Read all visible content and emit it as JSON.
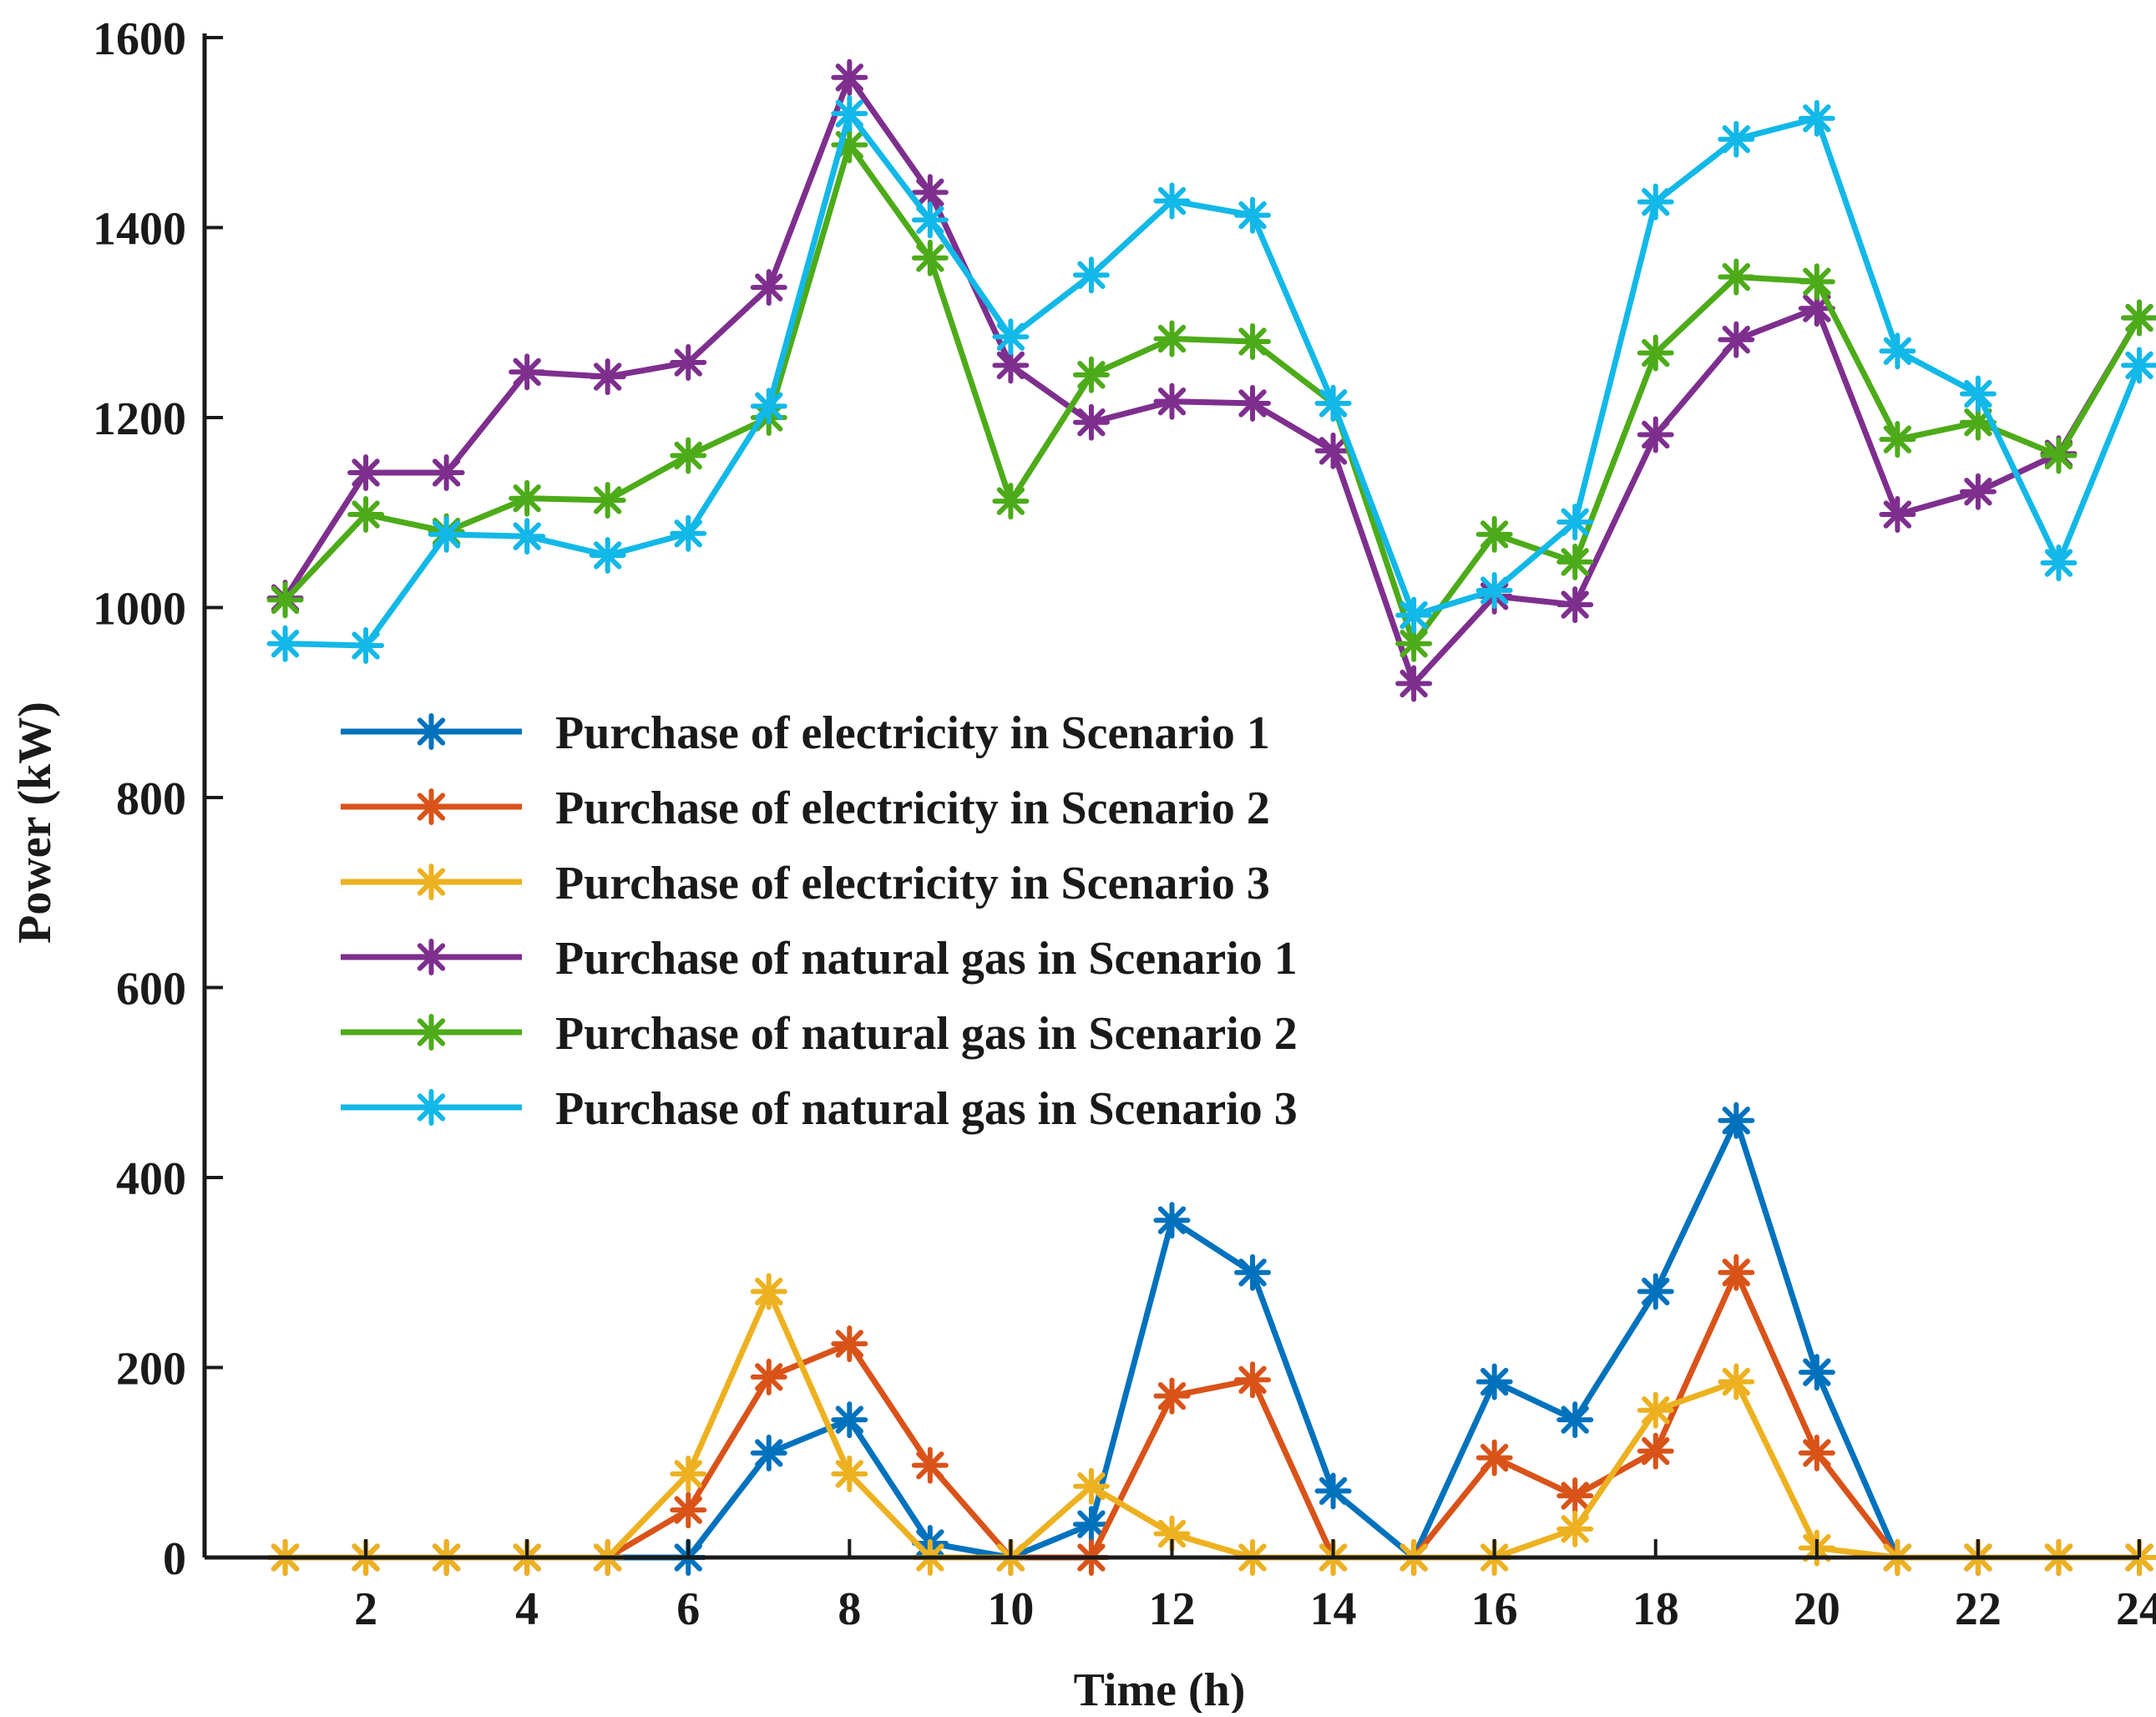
{
  "chart_data": {
    "type": "line",
    "title": "",
    "xlabel": "Time (h)",
    "ylabel": "Power (kW)",
    "xlim": [
      0,
      24
    ],
    "ylim": [
      0,
      1600
    ],
    "xticks": [
      2,
      4,
      6,
      8,
      10,
      12,
      14,
      16,
      18,
      20,
      22,
      24
    ],
    "yticks": [
      0,
      200,
      400,
      600,
      800,
      1000,
      1200,
      1400,
      1600
    ],
    "grid": false,
    "legend_position": "center-left",
    "marker": "asterisk",
    "x": [
      1,
      2,
      3,
      4,
      5,
      6,
      7,
      8,
      9,
      10,
      11,
      12,
      13,
      14,
      15,
      16,
      17,
      18,
      19,
      20,
      21,
      22,
      23,
      24
    ],
    "series": [
      {
        "name": "Purchase of electricity in Scenario 1",
        "color": "#0072BD",
        "values": [
          0,
          0,
          0,
          0,
          0,
          0,
          110,
          145,
          15,
          0,
          35,
          355,
          300,
          70,
          0,
          185,
          145,
          280,
          460,
          195,
          0,
          0,
          0,
          0
        ]
      },
      {
        "name": "Purchase of electricity in Scenario 2",
        "color": "#D95319",
        "values": [
          0,
          0,
          0,
          0,
          0,
          50,
          190,
          225,
          97,
          0,
          0,
          170,
          187,
          0,
          0,
          105,
          65,
          112,
          300,
          110,
          0,
          0,
          0,
          0
        ]
      },
      {
        "name": "Purchase of electricity in Scenario 3",
        "color": "#EDB120",
        "values": [
          0,
          0,
          0,
          0,
          0,
          88,
          280,
          88,
          0,
          0,
          75,
          25,
          0,
          0,
          0,
          0,
          30,
          155,
          185,
          10,
          0,
          0,
          0,
          0
        ]
      },
      {
        "name": "Purchase of natural gas in Scenario 1",
        "color": "#7E2F8E",
        "values": [
          1010,
          1142,
          1142,
          1248,
          1243,
          1258,
          1337,
          1558,
          1437,
          1255,
          1195,
          1217,
          1215,
          1165,
          920,
          1012,
          1003,
          1182,
          1282,
          1315,
          1098,
          1122,
          1162,
          1305
        ]
      },
      {
        "name": "Purchase of natural gas in Scenario 2",
        "color": "#4DAB19",
        "values": [
          1008,
          1098,
          1080,
          1115,
          1113,
          1160,
          1200,
          1487,
          1368,
          1112,
          1245,
          1283,
          1280,
          1215,
          962,
          1077,
          1048,
          1268,
          1348,
          1343,
          1177,
          1195,
          1160,
          1305
        ]
      },
      {
        "name": "Purchase of natural gas in Scenario 3",
        "color": "#12B8E8",
        "values": [
          962,
          960,
          1077,
          1075,
          1055,
          1078,
          1212,
          1520,
          1408,
          1285,
          1350,
          1428,
          1413,
          1215,
          992,
          1018,
          1090,
          1427,
          1493,
          1515,
          1270,
          1225,
          1047,
          1255
        ]
      }
    ]
  }
}
